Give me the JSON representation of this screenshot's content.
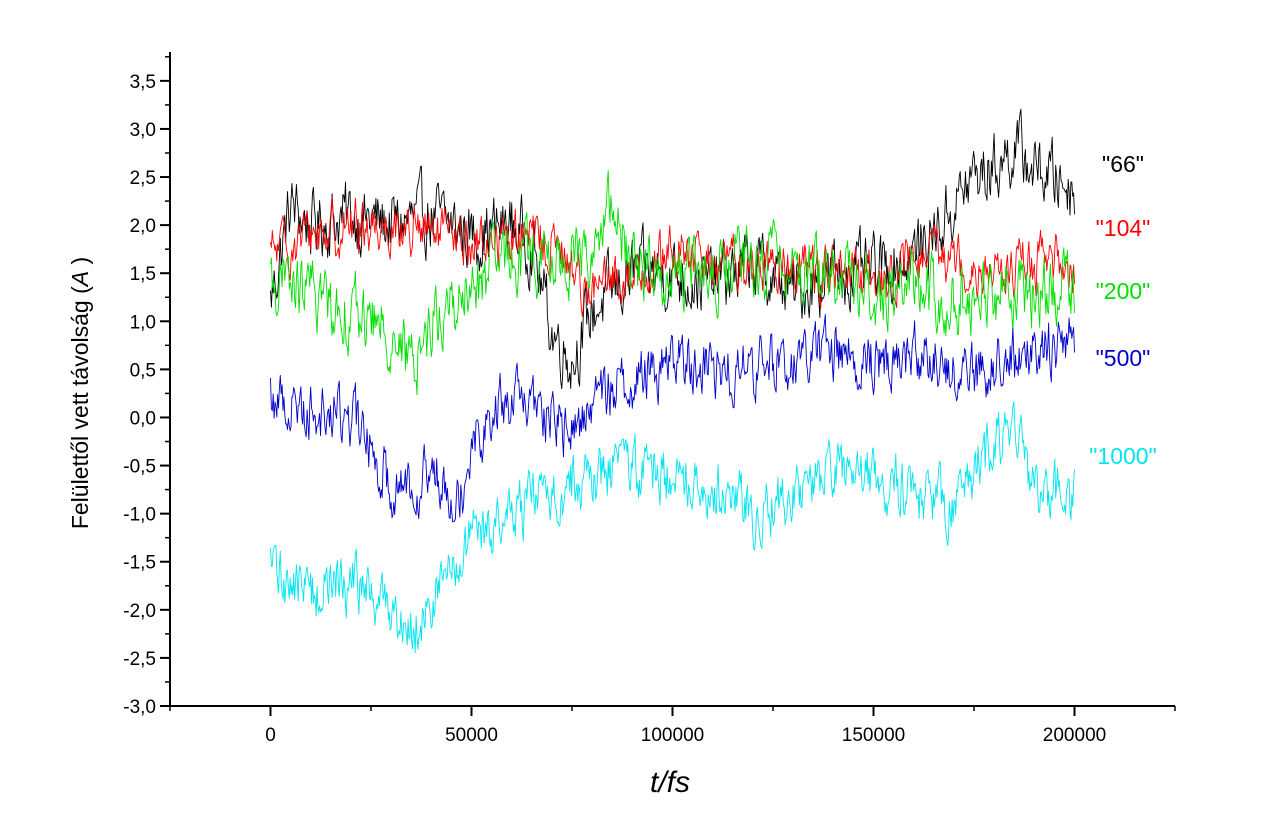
{
  "chart_data": {
    "type": "line",
    "title": "",
    "xlabel": "t/fs",
    "ylabel": "Felülettől vett távolság (A)",
    "ylabel_parts": {
      "prefix": "Felülettől vett távolság (",
      "italic": "A",
      "suffix": " )"
    },
    "xlim": [
      -25000,
      225000
    ],
    "ylim": [
      -3.0,
      3.8
    ],
    "x_ticks": [
      0,
      50000,
      100000,
      150000,
      200000
    ],
    "x_tick_labels": [
      "0",
      "50000",
      "100000",
      "150000",
      "200000"
    ],
    "y_ticks": [
      -3.0,
      -2.5,
      -2.0,
      -1.5,
      -1.0,
      -0.5,
      0.0,
      0.5,
      1.0,
      1.5,
      2.0,
      2.5,
      3.0,
      3.5
    ],
    "y_tick_labels": [
      "-3,0",
      "-2,5",
      "-2,0",
      "-1,5",
      "-1,0",
      "-0,5",
      "0,0",
      "0,5",
      "1,0",
      "1,5",
      "2,0",
      "2,5",
      "3,0",
      "3,5"
    ],
    "grid": false,
    "legend": "inline-right",
    "series": [
      {
        "name": "\"66\"",
        "color": "#000000",
        "noise": 0.28,
        "x": [
          0,
          5000,
          10000,
          20000,
          30000,
          40000,
          50000,
          60000,
          65000,
          70000,
          75000,
          80000,
          90000,
          100000,
          110000,
          120000,
          130000,
          140000,
          150000,
          160000,
          165000,
          170000,
          175000,
          180000,
          185000,
          190000,
          195000,
          200000
        ],
        "y": [
          1.2,
          2.2,
          2.0,
          2.1,
          2.0,
          2.1,
          1.9,
          2.0,
          1.8,
          0.9,
          0.6,
          1.1,
          1.5,
          1.5,
          1.4,
          1.6,
          1.3,
          1.5,
          1.5,
          1.7,
          1.9,
          2.2,
          2.5,
          2.6,
          2.8,
          2.6,
          2.5,
          2.4
        ]
      },
      {
        "name": "\"104\"",
        "color": "#ff0000",
        "noise": 0.22,
        "x": [
          0,
          10000,
          20000,
          30000,
          40000,
          50000,
          60000,
          70000,
          80000,
          90000,
          100000,
          110000,
          120000,
          130000,
          140000,
          150000,
          160000,
          170000,
          180000,
          190000,
          200000
        ],
        "y": [
          1.7,
          1.9,
          2.0,
          2.0,
          1.9,
          1.8,
          1.9,
          1.8,
          1.3,
          1.5,
          1.7,
          1.6,
          1.6,
          1.6,
          1.5,
          1.4,
          1.6,
          1.7,
          1.5,
          1.6,
          1.6
        ]
      },
      {
        "name": "\"200\"",
        "color": "#00e000",
        "noise": 0.28,
        "x": [
          0,
          10000,
          20000,
          30000,
          35000,
          40000,
          50000,
          60000,
          70000,
          80000,
          85000,
          90000,
          100000,
          110000,
          120000,
          130000,
          140000,
          150000,
          160000,
          170000,
          180000,
          190000,
          200000
        ],
        "y": [
          1.4,
          1.3,
          1.1,
          0.9,
          0.5,
          1.0,
          1.3,
          1.7,
          1.6,
          1.7,
          2.2,
          1.6,
          1.5,
          1.5,
          1.6,
          1.6,
          1.5,
          1.3,
          1.4,
          1.2,
          1.3,
          1.3,
          1.4
        ]
      },
      {
        "name": "\"500\"",
        "color": "#0000cc",
        "noise": 0.25,
        "x": [
          0,
          10000,
          20000,
          25000,
          30000,
          40000,
          48000,
          50000,
          60000,
          70000,
          75000,
          80000,
          90000,
          100000,
          110000,
          120000,
          130000,
          140000,
          150000,
          160000,
          170000,
          180000,
          190000,
          200000
        ],
        "y": [
          0.2,
          0.1,
          0.0,
          -0.3,
          -0.7,
          -0.6,
          -0.7,
          -0.2,
          0.2,
          0.0,
          -0.2,
          0.2,
          0.4,
          0.6,
          0.5,
          0.5,
          0.6,
          0.7,
          0.6,
          0.7,
          0.5,
          0.5,
          0.7,
          0.9
        ]
      },
      {
        "name": "\"1000\"",
        "color": "#00e5f0",
        "noise": 0.25,
        "x": [
          0,
          10000,
          20000,
          30000,
          35000,
          40000,
          45000,
          50000,
          60000,
          70000,
          80000,
          90000,
          100000,
          110000,
          120000,
          130000,
          140000,
          150000,
          160000,
          170000,
          180000,
          185000,
          190000,
          200000
        ],
        "y": [
          -1.6,
          -1.8,
          -1.7,
          -2.0,
          -2.2,
          -1.9,
          -1.6,
          -1.3,
          -1.0,
          -0.8,
          -0.6,
          -0.5,
          -0.6,
          -0.7,
          -1.0,
          -0.8,
          -0.6,
          -0.6,
          -0.8,
          -0.9,
          -0.3,
          -0.2,
          -0.7,
          -0.9
        ]
      }
    ]
  }
}
